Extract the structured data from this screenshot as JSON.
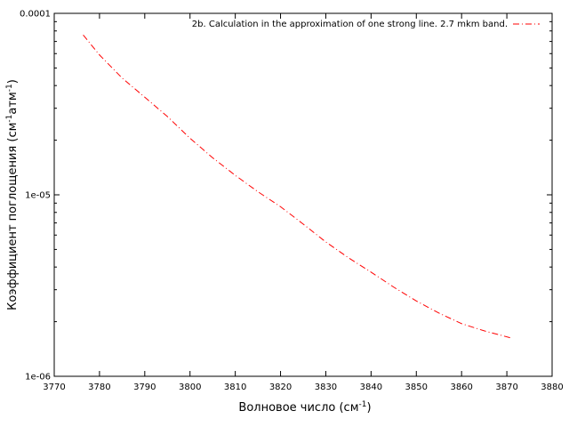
{
  "chart_data": {
    "type": "line",
    "xlabel": {
      "base": "Волновое число (см",
      "sup": "-1",
      "tail": ")"
    },
    "ylabel": {
      "base": "Коэффициент поглощения (см",
      "sup1": "-1",
      "mid": "атм",
      "sup2": "-1",
      "tail": ")"
    },
    "xlim": [
      3770,
      3880
    ],
    "ylim": [
      1e-06,
      0.0001
    ],
    "yscale": "log",
    "grid": false,
    "legend_position": "top-right",
    "x_ticks": [
      {
        "value": 3770,
        "label": "3770"
      },
      {
        "value": 3780,
        "label": "3780"
      },
      {
        "value": 3790,
        "label": "3790"
      },
      {
        "value": 3800,
        "label": "3800"
      },
      {
        "value": 3810,
        "label": "3810"
      },
      {
        "value": 3820,
        "label": "3820"
      },
      {
        "value": 3830,
        "label": "3830"
      },
      {
        "value": 3840,
        "label": "3840"
      },
      {
        "value": 3850,
        "label": "3850"
      },
      {
        "value": 3860,
        "label": "3860"
      },
      {
        "value": 3870,
        "label": "3870"
      },
      {
        "value": 3880,
        "label": "3880"
      }
    ],
    "y_ticks": [
      {
        "value": 1e-06,
        "label": "1e-06"
      },
      {
        "value": 1e-05,
        "label": "1e-05"
      },
      {
        "value": 0.0001,
        "label": "0.0001"
      }
    ],
    "series": [
      {
        "name": "2b. Calculation in the approximation of one strong line. 2.7 mkm band.",
        "color": "#ff0000",
        "dash": "dash-dot",
        "x": [
          3776.4,
          3780,
          3785,
          3790,
          3795,
          3800,
          3805,
          3810,
          3815,
          3820,
          3825,
          3830,
          3835,
          3840,
          3845,
          3850,
          3855,
          3860,
          3865,
          3871.2
        ],
        "y": [
          7.6e-05,
          5.9e-05,
          4.4e-05,
          3.45e-05,
          2.7e-05,
          2.05e-05,
          1.6e-05,
          1.28e-05,
          1.04e-05,
          8.6e-06,
          6.9e-06,
          5.5e-06,
          4.5e-06,
          3.75e-06,
          3.1e-06,
          2.6e-06,
          2.23e-06,
          1.95e-06,
          1.78e-06,
          1.62e-06
        ]
      }
    ]
  }
}
